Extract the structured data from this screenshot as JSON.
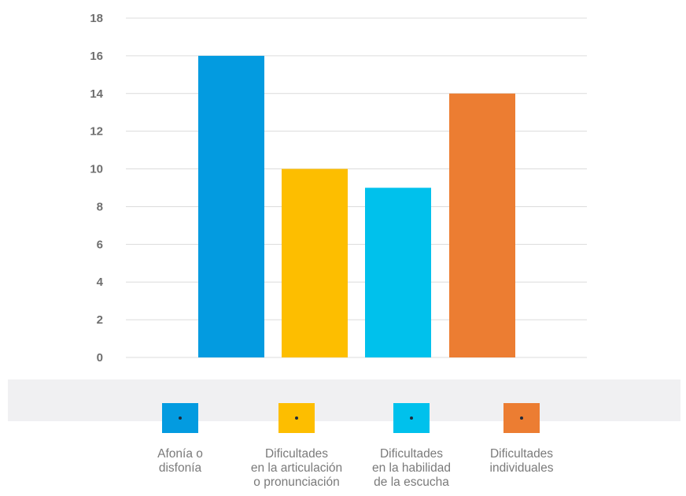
{
  "chart_data": {
    "type": "bar",
    "categories": [
      "Afonía o\ndisfonía",
      "Dificultades\nen la articulación\no pronunciación",
      "Dificultades\nen la habilidad\nde la escucha",
      "Dificultades\nindividuales"
    ],
    "values": [
      16,
      10,
      9,
      14
    ],
    "colors": [
      "#039be0",
      "#fdbe00",
      "#00c1ec",
      "#ec7d32"
    ],
    "ylim": [
      0,
      18
    ],
    "yticks": [
      0,
      2,
      4,
      6,
      8,
      10,
      12,
      14,
      16,
      18
    ],
    "grid": true,
    "legend_position": "bottom"
  }
}
